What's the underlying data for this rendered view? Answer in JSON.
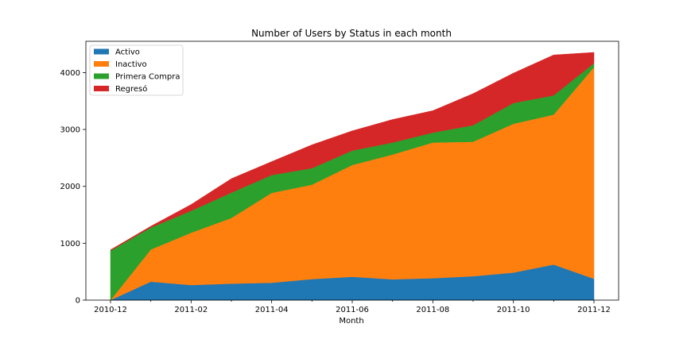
{
  "chart_data": {
    "type": "area",
    "stacked": true,
    "title": "Number of Users by Status in each month",
    "xlabel": "Month",
    "ylabel": "",
    "x": [
      "2010-12",
      "2011-01",
      "2011-02",
      "2011-03",
      "2011-04",
      "2011-05",
      "2011-06",
      "2011-07",
      "2011-08",
      "2011-09",
      "2011-10",
      "2011-11",
      "2011-12"
    ],
    "x_tick_labels": [
      "2010-12",
      "2011-02",
      "2011-04",
      "2011-06",
      "2011-08",
      "2011-10",
      "2011-12"
    ],
    "y_ticks": [
      0,
      1000,
      2000,
      3000,
      4000
    ],
    "ylim": [
      0,
      4550
    ],
    "grid": false,
    "legend_position": "top-left",
    "series": [
      {
        "name": "Activo",
        "color": "#1f77b4",
        "values": [
          0,
          325,
          265,
          290,
          305,
          370,
          410,
          365,
          385,
          420,
          485,
          625,
          375
        ]
      },
      {
        "name": "Inactivo",
        "color": "#ff7f0e",
        "values": [
          0,
          565,
          920,
          1155,
          1580,
          1660,
          1965,
          2195,
          2385,
          2365,
          2615,
          2635,
          3720
        ]
      },
      {
        "name": "Primera Compra",
        "color": "#2ca02c",
        "values": [
          870,
          385,
          385,
          445,
          315,
          290,
          255,
          210,
          175,
          290,
          365,
          340,
          70
        ]
      },
      {
        "name": "Regresó",
        "color": "#d62728",
        "values": [
          15,
          25,
          110,
          245,
          235,
          410,
          345,
          405,
          385,
          555,
          525,
          710,
          190
        ]
      }
    ]
  }
}
